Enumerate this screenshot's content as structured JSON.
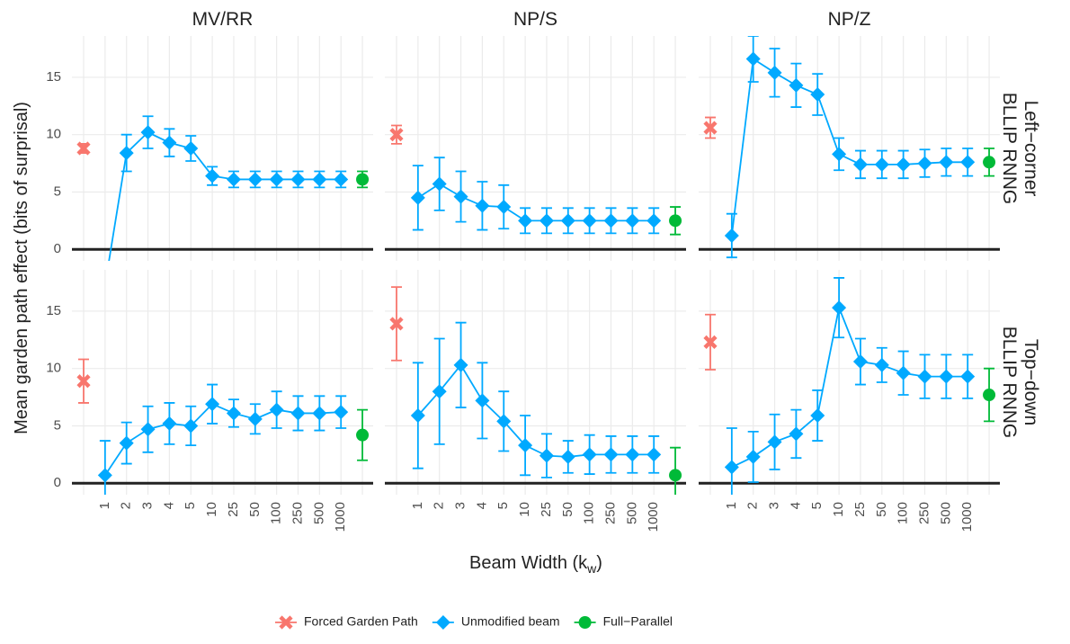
{
  "chart_data": {
    "type": "line",
    "ylabel": "Mean garden path effect (bits of surprisal)",
    "xlabel": [
      "Beam Width (k",
      "w",
      ")"
    ],
    "columns": [
      "MV/RR",
      "NP/S",
      "NP/Z"
    ],
    "rows": [
      [
        "Left−corner",
        "BLLIP RNNG"
      ],
      [
        "Top−down",
        "BLLIP RNNG"
      ]
    ],
    "categories": [
      null,
      "1",
      "2",
      "3",
      "4",
      "5",
      "10",
      "25",
      "50",
      "100",
      "250",
      "500",
      "1000",
      null
    ],
    "ylim": [
      -1,
      18.6
    ],
    "yticks": [
      0,
      5,
      10,
      15
    ],
    "hline": 0,
    "grid": true,
    "legend": "bottom",
    "series": [
      {
        "name": "Forced Garden Path",
        "color": "#F8766D",
        "marker": "x"
      },
      {
        "name": "Unmodified beam",
        "color": "#00A9FF",
        "marker": "diamond"
      },
      {
        "name": "Full−Parallel",
        "color": "#00BA38",
        "marker": "circle"
      }
    ],
    "panels": [
      {
        "values": [
          [
            8.8,
            null,
            null,
            null,
            null,
            null,
            null,
            null,
            null,
            null,
            null,
            null,
            null,
            null
          ],
          [
            null,
            -3.1,
            8.4,
            10.2,
            9.3,
            8.8,
            6.4,
            6.1,
            6.1,
            6.1,
            6.1,
            6.1,
            6.1,
            null
          ],
          [
            null,
            null,
            null,
            null,
            null,
            null,
            null,
            null,
            null,
            null,
            null,
            null,
            null,
            6.1
          ]
        ],
        "errors": [
          [
            0.4,
            null,
            null,
            null,
            null,
            null,
            null,
            null,
            null,
            null,
            null,
            null,
            null,
            null
          ],
          [
            null,
            1,
            1.6,
            1.4,
            1.2,
            1.1,
            0.8,
            0.7,
            0.7,
            0.7,
            0.7,
            0.7,
            0.7,
            null
          ],
          [
            null,
            null,
            null,
            null,
            null,
            null,
            null,
            null,
            null,
            null,
            null,
            null,
            null,
            0.7
          ]
        ]
      },
      {
        "values": [
          [
            10.0,
            null,
            null,
            null,
            null,
            null,
            null,
            null,
            null,
            null,
            null,
            null,
            null,
            null
          ],
          [
            null,
            4.5,
            5.7,
            4.6,
            3.8,
            3.7,
            2.5,
            2.5,
            2.5,
            2.5,
            2.5,
            2.5,
            2.5,
            null
          ],
          [
            null,
            null,
            null,
            null,
            null,
            null,
            null,
            null,
            null,
            null,
            null,
            null,
            null,
            2.5
          ]
        ],
        "errors": [
          [
            0.8,
            null,
            null,
            null,
            null,
            null,
            null,
            null,
            null,
            null,
            null,
            null,
            null,
            null
          ],
          [
            null,
            2.8,
            2.3,
            2.2,
            2.1,
            1.9,
            1.1,
            1.1,
            1.1,
            1.1,
            1.1,
            1.1,
            1.1,
            null
          ],
          [
            null,
            null,
            null,
            null,
            null,
            null,
            null,
            null,
            null,
            null,
            null,
            null,
            null,
            1.2
          ]
        ]
      },
      {
        "values": [
          [
            10.6,
            null,
            null,
            null,
            null,
            null,
            null,
            null,
            null,
            null,
            null,
            null,
            null,
            null
          ],
          [
            null,
            1.2,
            16.6,
            15.4,
            14.3,
            13.5,
            8.3,
            7.4,
            7.4,
            7.4,
            7.5,
            7.6,
            7.6,
            null
          ],
          [
            null,
            null,
            null,
            null,
            null,
            null,
            null,
            null,
            null,
            null,
            null,
            null,
            null,
            7.6
          ]
        ],
        "errors": [
          [
            0.9,
            null,
            null,
            null,
            null,
            null,
            null,
            null,
            null,
            null,
            null,
            null,
            null,
            null
          ],
          [
            null,
            1.9,
            2.0,
            2.1,
            1.9,
            1.8,
            1.4,
            1.2,
            1.2,
            1.2,
            1.2,
            1.2,
            1.2,
            null
          ],
          [
            null,
            null,
            null,
            null,
            null,
            null,
            null,
            null,
            null,
            null,
            null,
            null,
            null,
            1.2
          ]
        ]
      },
      {
        "values": [
          [
            8.9,
            null,
            null,
            null,
            null,
            null,
            null,
            null,
            null,
            null,
            null,
            null,
            null,
            null
          ],
          [
            null,
            0.7,
            3.5,
            4.7,
            5.2,
            5.0,
            6.9,
            6.1,
            5.6,
            6.4,
            6.1,
            6.1,
            6.2,
            null
          ],
          [
            null,
            null,
            null,
            null,
            null,
            null,
            null,
            null,
            null,
            null,
            null,
            null,
            null,
            4.2
          ]
        ],
        "errors": [
          [
            1.9,
            null,
            null,
            null,
            null,
            null,
            null,
            null,
            null,
            null,
            null,
            null,
            null,
            null
          ],
          [
            null,
            3.0,
            1.8,
            2.0,
            1.8,
            1.7,
            1.7,
            1.2,
            1.3,
            1.6,
            1.5,
            1.5,
            1.4,
            null
          ],
          [
            null,
            null,
            null,
            null,
            null,
            null,
            null,
            null,
            null,
            null,
            null,
            null,
            null,
            2.2
          ]
        ]
      },
      {
        "values": [
          [
            13.9,
            null,
            null,
            null,
            null,
            null,
            null,
            null,
            null,
            null,
            null,
            null,
            null,
            null
          ],
          [
            null,
            5.9,
            8.0,
            10.3,
            7.2,
            5.4,
            3.3,
            2.4,
            2.3,
            2.5,
            2.5,
            2.5,
            2.5,
            null
          ],
          [
            null,
            null,
            null,
            null,
            null,
            null,
            null,
            null,
            null,
            null,
            null,
            null,
            null,
            0.7
          ]
        ],
        "errors": [
          [
            3.2,
            null,
            null,
            null,
            null,
            null,
            null,
            null,
            null,
            null,
            null,
            null,
            null,
            null
          ],
          [
            null,
            4.6,
            4.6,
            3.7,
            3.3,
            2.6,
            2.6,
            1.9,
            1.4,
            1.7,
            1.6,
            1.6,
            1.6,
            null
          ],
          [
            null,
            null,
            null,
            null,
            null,
            null,
            null,
            null,
            null,
            null,
            null,
            null,
            null,
            2.4
          ]
        ]
      },
      {
        "values": [
          [
            12.3,
            null,
            null,
            null,
            null,
            null,
            null,
            null,
            null,
            null,
            null,
            null,
            null,
            null
          ],
          [
            null,
            1.4,
            2.3,
            3.6,
            4.3,
            5.9,
            15.3,
            10.6,
            10.3,
            9.6,
            9.3,
            9.3,
            9.3,
            null
          ],
          [
            null,
            null,
            null,
            null,
            null,
            null,
            null,
            null,
            null,
            null,
            null,
            null,
            null,
            7.7
          ]
        ],
        "errors": [
          [
            2.4,
            null,
            null,
            null,
            null,
            null,
            null,
            null,
            null,
            null,
            null,
            null,
            null,
            null
          ],
          [
            null,
            3.4,
            2.2,
            2.4,
            2.1,
            2.2,
            2.6,
            2.0,
            1.5,
            1.9,
            1.9,
            1.9,
            1.9,
            null
          ],
          [
            null,
            null,
            null,
            null,
            null,
            null,
            null,
            null,
            null,
            null,
            null,
            null,
            null,
            2.3
          ]
        ]
      }
    ]
  }
}
